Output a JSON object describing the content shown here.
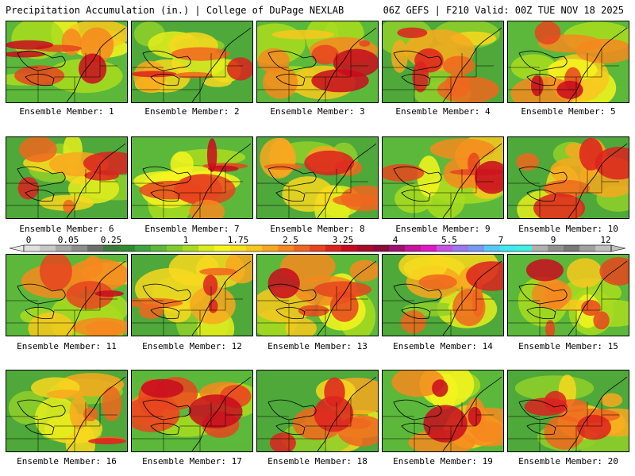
{
  "header": {
    "left": "Precipitation Accumulation (in.) | College of DuPage NEXLAB",
    "right": "06Z GEFS | F210 Valid: 00Z TUE NOV 18 2025"
  },
  "panel_label_prefix": "Ensemble Member: ",
  "members": [
    {
      "id": 1,
      "label": "Ensemble Member: 1"
    },
    {
      "id": 2,
      "label": "Ensemble Member: 2"
    },
    {
      "id": 3,
      "label": "Ensemble Member: 3"
    },
    {
      "id": 4,
      "label": "Ensemble Member: 4"
    },
    {
      "id": 5,
      "label": "Ensemble Member: 5"
    },
    {
      "id": 6,
      "label": "Ensemble Member: 6"
    },
    {
      "id": 7,
      "label": "Ensemble Member: 7"
    },
    {
      "id": 8,
      "label": "Ensemble Member: 8"
    },
    {
      "id": 9,
      "label": "Ensemble Member: 9"
    },
    {
      "id": 10,
      "label": "Ensemble Member: 10"
    },
    {
      "id": 11,
      "label": "Ensemble Member: 11"
    },
    {
      "id": 12,
      "label": "Ensemble Member: 12"
    },
    {
      "id": 13,
      "label": "Ensemble Member: 13"
    },
    {
      "id": 14,
      "label": "Ensemble Member: 14"
    },
    {
      "id": 15,
      "label": "Ensemble Member: 15"
    },
    {
      "id": 16,
      "label": "Ensemble Member: 16"
    },
    {
      "id": 17,
      "label": "Ensemble Member: 17"
    },
    {
      "id": 18,
      "label": "Ensemble Member: 18"
    },
    {
      "id": 19,
      "label": "Ensemble Member: 19"
    },
    {
      "id": 20,
      "label": "Ensemble Member: 20"
    }
  ],
  "colorbar": {
    "labels": [
      "0",
      "0.05",
      "0.25",
      "1",
      "1.75",
      "2.5",
      "3.25",
      "4",
      "5.5",
      "7",
      "9",
      "12"
    ],
    "colors": [
      "#e0e0e0",
      "#c8c8c8",
      "#a8a8a8",
      "#8c8c8c",
      "#6e6e6e",
      "#3a7a3a",
      "#2e8b2e",
      "#3fa33f",
      "#5cb83a",
      "#7fcc2a",
      "#a9dc1e",
      "#d8ec1a",
      "#f5f51e",
      "#f8e01e",
      "#f8c81e",
      "#f8a81e",
      "#f6881e",
      "#f0661e",
      "#e8441e",
      "#dc221e",
      "#c80a1e",
      "#a80a28",
      "#8c0a3c",
      "#a0106e",
      "#c8149c",
      "#e018c8",
      "#c850e6",
      "#9a78f0",
      "#7898f6",
      "#58c8f8",
      "#40e8f0",
      "#40f0e0",
      "#b0b0b0",
      "#909090",
      "#787878",
      "#a0a0a0",
      "#c0c0c0"
    ]
  }
}
